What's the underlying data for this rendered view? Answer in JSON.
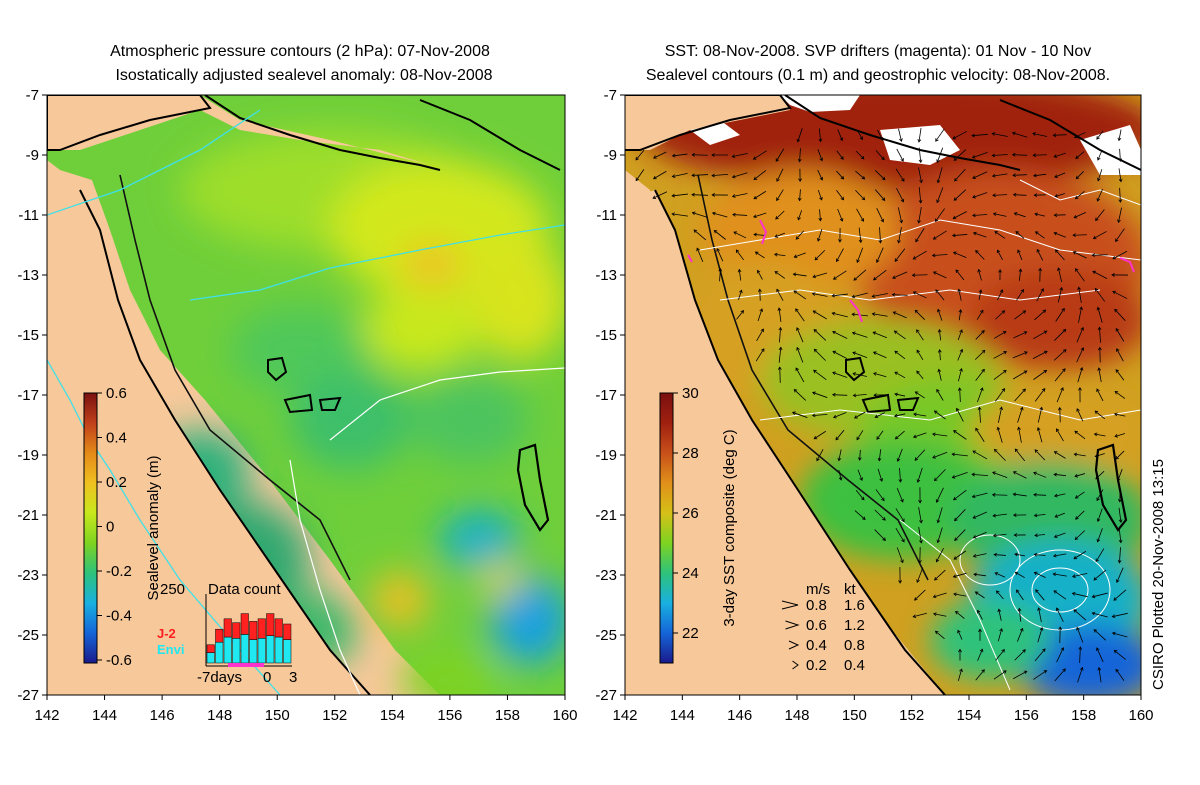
{
  "colors": {
    "land": "#f7c89a",
    "sealevel_ramp": [
      "#1a1a8c",
      "#1565d8",
      "#19b0e0",
      "#2ec27a",
      "#7ed321",
      "#c8e81c",
      "#f0c020",
      "#e48a18",
      "#c0401a",
      "#7a1010"
    ],
    "sst_ramp": [
      "#1a1a8c",
      "#1565d8",
      "#19b0e0",
      "#2ec27a",
      "#7ed321",
      "#d6c018",
      "#e0901a",
      "#c8501a",
      "#a02010",
      "#7a1010"
    ],
    "contour_cyan": "#40e0e8",
    "drifters": "#ff33cc",
    "j2_label": "#ff2020",
    "envi_label": "#20e8f0"
  },
  "left_map": {
    "title_line1": "Atmospheric pressure contours (2 hPa): 07-Nov-2008",
    "title_line2": "Isostatically adjusted sealevel anomaly: 08-Nov-2008",
    "lon_ticks": [
      "142",
      "144",
      "146",
      "148",
      "150",
      "152",
      "154",
      "156",
      "158",
      "160"
    ],
    "lat_ticks": [
      "-7",
      "-9",
      "-11",
      "-13",
      "-15",
      "-17",
      "-19",
      "-21",
      "-23",
      "-25",
      "-27"
    ],
    "colorbar": {
      "label": "Sealevel anomaly (m)",
      "ticks": [
        "0.6",
        "0.4",
        "0.2",
        "0",
        "-0.2",
        "-0.4",
        "-0.6"
      ],
      "range": [
        -0.6,
        0.6
      ]
    },
    "data_count": {
      "label": "Data count",
      "ymax": "250",
      "xlabels": [
        "-7days",
        "0",
        "3"
      ],
      "legend_j2": "J-2",
      "legend_envi": "Envi",
      "envi_counts": [
        40,
        80,
        100,
        95,
        110,
        90,
        95,
        105,
        100,
        90
      ],
      "j2_counts": [
        30,
        50,
        70,
        60,
        80,
        70,
        75,
        85,
        70,
        60
      ]
    }
  },
  "right_map": {
    "title_line1": "SST: 08-Nov-2008. SVP drifters (magenta): 01 Nov - 10 Nov",
    "title_line2": "Sealevel contours (0.1 m) and geostrophic velocity: 08-Nov-2008.",
    "lon_ticks": [
      "142",
      "144",
      "146",
      "148",
      "150",
      "152",
      "154",
      "156",
      "158",
      "160"
    ],
    "lat_ticks": [
      "-7",
      "-9",
      "-11",
      "-13",
      "-15",
      "-17",
      "-19",
      "-21",
      "-23",
      "-25",
      "-27"
    ],
    "colorbar": {
      "label": "3-day SST composite (deg C)",
      "ticks": [
        "30",
        "28",
        "26",
        "24",
        "22"
      ],
      "range": [
        21,
        30
      ]
    },
    "velocity_legend": {
      "header_ms": "m/s",
      "header_kt": "kt",
      "rows": [
        {
          "ms": "0.8",
          "kt": "1.6"
        },
        {
          "ms": "0.6",
          "kt": "1.2"
        },
        {
          "ms": "0.4",
          "kt": "0.8"
        },
        {
          "ms": "0.2",
          "kt": "0.4"
        }
      ]
    },
    "credit": "CSIRO Plotted 20-Nov-2008 13:15"
  }
}
